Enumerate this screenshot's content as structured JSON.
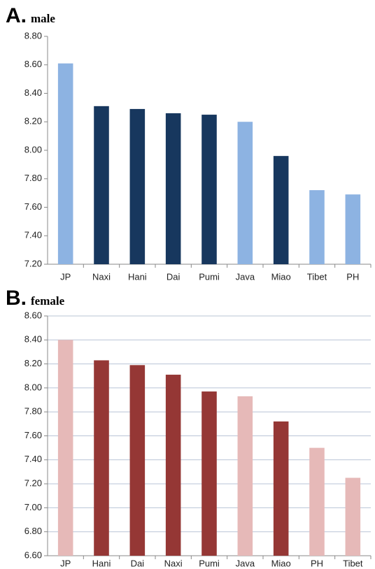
{
  "chart_data": [
    {
      "type": "bar",
      "panel": "A.",
      "title": "male",
      "categories": [
        "JP",
        "Naxi",
        "Hani",
        "Dai",
        "Pumi",
        "Java",
        "Miao",
        "Tibet",
        "PH"
      ],
      "values": [
        8.61,
        8.31,
        8.29,
        8.26,
        8.25,
        8.2,
        7.96,
        7.72,
        7.69
      ],
      "colors": [
        "#8db3e2",
        "#17375e",
        "#17375e",
        "#17375e",
        "#17375e",
        "#8db3e2",
        "#17375e",
        "#8db3e2",
        "#8db3e2"
      ],
      "ylim": [
        7.2,
        8.8
      ],
      "yticks": [
        {
          "value": 7.2,
          "label": "7.20"
        },
        {
          "value": 7.4,
          "label": "7.40"
        },
        {
          "value": 7.6,
          "label": "7.60"
        },
        {
          "value": 7.8,
          "label": "7.80"
        },
        {
          "value": 8.0,
          "label": "8.00"
        },
        {
          "value": 8.2,
          "label": "8.20"
        },
        {
          "value": 8.4,
          "label": "8.40"
        },
        {
          "value": 8.6,
          "label": "8.60"
        },
        {
          "value": 8.8,
          "label": "8.80"
        }
      ],
      "grid": false
    },
    {
      "type": "bar",
      "panel": "B.",
      "title": "female",
      "categories": [
        "JP",
        "Hani",
        "Dai",
        "Naxi",
        "Pumi",
        "Java",
        "Miao",
        "PH",
        "Tibet"
      ],
      "values": [
        8.4,
        8.23,
        8.19,
        8.11,
        7.97,
        7.93,
        7.72,
        7.5,
        7.25
      ],
      "colors": [
        "#e6b9b8",
        "#953735",
        "#953735",
        "#953735",
        "#953735",
        "#e6b9b8",
        "#953735",
        "#e6b9b8",
        "#e6b9b8"
      ],
      "ylim": [
        6.6,
        8.6
      ],
      "yticks": [
        {
          "value": 6.6,
          "label": "6.60"
        },
        {
          "value": 6.8,
          "label": "6.80"
        },
        {
          "value": 7.0,
          "label": "7.00"
        },
        {
          "value": 7.2,
          "label": "7.20"
        },
        {
          "value": 7.4,
          "label": "7.40"
        },
        {
          "value": 7.6,
          "label": "7.60"
        },
        {
          "value": 7.8,
          "label": "7.80"
        },
        {
          "value": 8.0,
          "label": "8.00"
        },
        {
          "value": 8.2,
          "label": "8.20"
        },
        {
          "value": 8.4,
          "label": "8.40"
        },
        {
          "value": 8.6,
          "label": "8.60"
        }
      ],
      "grid": true
    }
  ]
}
